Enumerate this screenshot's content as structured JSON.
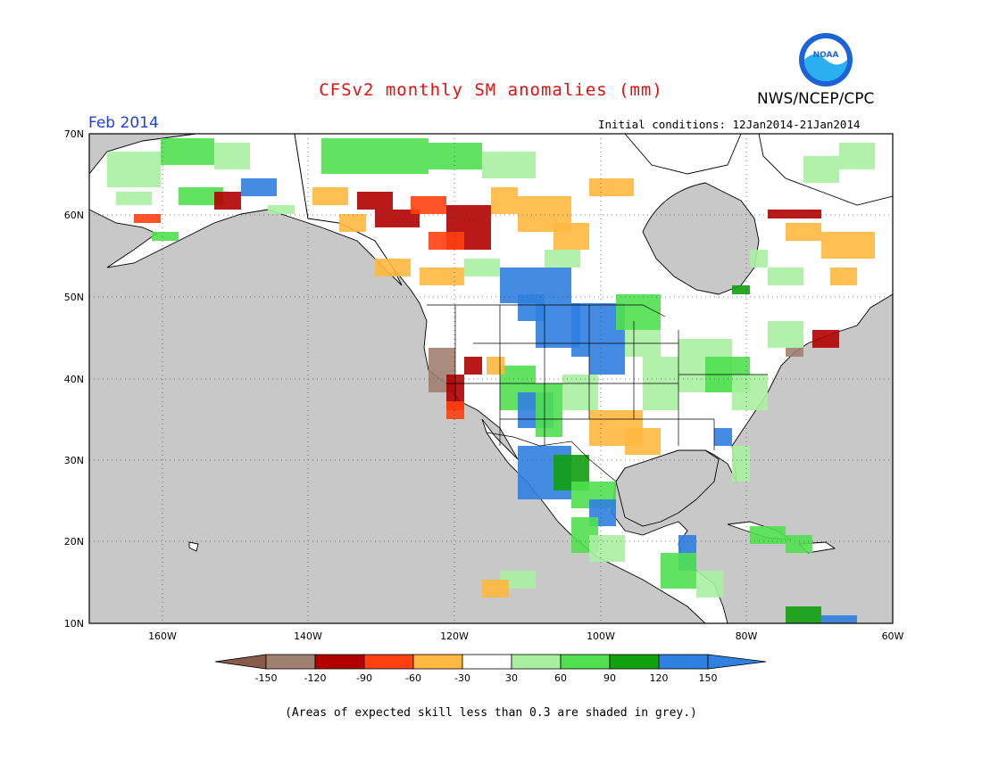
{
  "header": {
    "title": "CFSv2 monthly SM anomalies (mm)",
    "agency": "NWS/NCEP/CPC",
    "logo_text": "NOAA",
    "month": "Feb 2014",
    "initial_conditions": "Initial conditions: 12Jan2014-21Jan2014"
  },
  "axes": {
    "lat_labels": [
      "70N",
      "60N",
      "50N",
      "40N",
      "30N",
      "20N",
      "10N"
    ],
    "lon_labels": [
      "160W",
      "140W",
      "120W",
      "100W",
      "80W",
      "60W"
    ],
    "lat_range": [
      10,
      70
    ],
    "lon_range": [
      -170,
      -60
    ]
  },
  "colorbar": {
    "labels": [
      "-150",
      "-120",
      "-90",
      "-60",
      "-30",
      "30",
      "60",
      "90",
      "120",
      "150"
    ],
    "colors": [
      "#8a5a4a",
      "#a08070",
      "#b00000",
      "#ff4010",
      "#ffb840",
      "#ffffff",
      "#a8f0a0",
      "#50e050",
      "#10a010",
      "#3080e0",
      "#3080e0"
    ]
  },
  "footnote": "(Areas of expected skill less than 0.3 are shaded in grey.)",
  "map": {
    "ocean_color": "#c8c8c8",
    "land_color": "#ffffff"
  }
}
